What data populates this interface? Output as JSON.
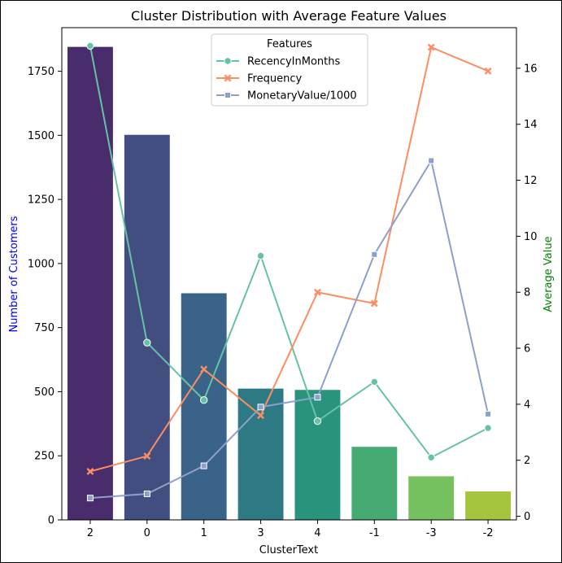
{
  "chart_data": {
    "type": "bar",
    "title": "Cluster Distribution with Average Feature Values",
    "xlabel": "ClusterText",
    "ylabel": "Number of Customers",
    "ylabel_right": "Average Value",
    "ylabel_color": "#0000ff",
    "ylabel_right_color": "#008000",
    "categories": [
      "2",
      "0",
      "1",
      "3",
      "4",
      "-1",
      "-3",
      "-2"
    ],
    "bars": {
      "values": [
        1845,
        1502,
        884,
        512,
        507,
        285,
        170,
        111
      ],
      "colors": [
        "#482c6c",
        "#424e80",
        "#3a6389",
        "#2e7a84",
        "#29937c",
        "#45ab72",
        "#75c15f",
        "#a5c53e"
      ]
    },
    "ylim": [
      0,
      1920
    ],
    "yticks": [
      0,
      250,
      500,
      750,
      1000,
      1250,
      1500,
      1750
    ],
    "ylim_right": [
      -0.13,
      17.45
    ],
    "yticks_right": [
      0,
      2,
      4,
      6,
      8,
      10,
      12,
      14,
      16
    ],
    "legend": {
      "title": "Features",
      "placement": "top-center"
    },
    "series": [
      {
        "name": "RecencyInMonths",
        "color": "#66c2a5",
        "marker": "circle",
        "values": [
          16.8,
          6.2,
          4.15,
          9.3,
          3.4,
          4.8,
          2.1,
          3.15
        ]
      },
      {
        "name": "Frequency",
        "color": "#fc8d62",
        "marker": "x",
        "values": [
          1.6,
          2.15,
          5.25,
          3.6,
          8.0,
          7.6,
          16.75,
          15.9
        ]
      },
      {
        "name": "MonetaryValue/1000",
        "color": "#8da0cb",
        "marker": "square",
        "values": [
          0.65,
          0.8,
          1.8,
          3.9,
          4.25,
          9.35,
          12.7,
          3.65
        ]
      }
    ],
    "grid": false
  }
}
